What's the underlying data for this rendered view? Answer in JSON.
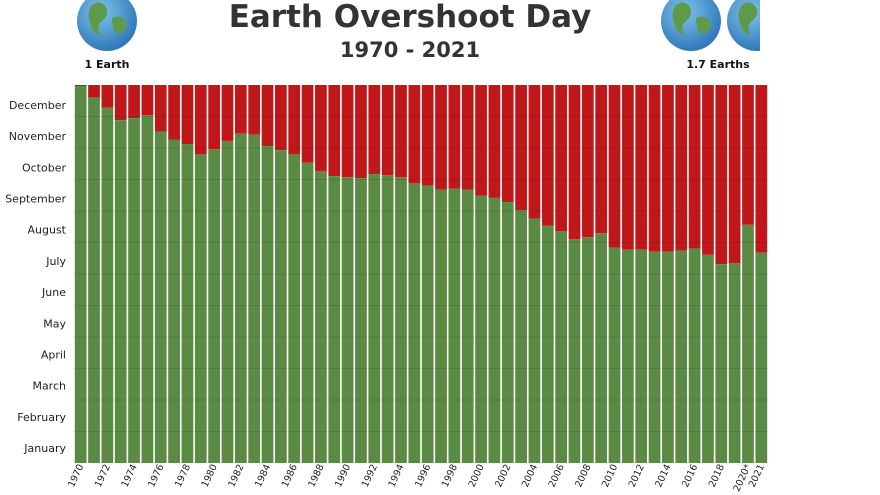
{
  "chart_data": {
    "type": "bar",
    "title": "Earth Overshoot Day",
    "subtitle": "1970 - 2021",
    "left_caption": "1 Earth",
    "right_caption": "1.7 Earths",
    "y_ticks": [
      "December",
      "November",
      "October",
      "September",
      "August",
      "July",
      "June",
      "May",
      "April",
      "March",
      "February",
      "January"
    ],
    "x_tick_labels": [
      "1970",
      "1972",
      "1974",
      "1976",
      "1978",
      "1980",
      "1982",
      "1984",
      "1986",
      "1988",
      "1990",
      "1992",
      "1994",
      "1996",
      "1998",
      "2000",
      "2002",
      "2004",
      "2006",
      "2008",
      "2010",
      "2012",
      "2014",
      "2016",
      "2018",
      "2020*",
      "2021"
    ],
    "ylim": [
      0,
      365
    ],
    "categories": [
      "1970",
      "1971",
      "1972",
      "1973",
      "1974",
      "1975",
      "1976",
      "1977",
      "1978",
      "1979",
      "1980",
      "1981",
      "1982",
      "1983",
      "1984",
      "1985",
      "1986",
      "1987",
      "1988",
      "1989",
      "1990",
      "1991",
      "1992",
      "1993",
      "1994",
      "1995",
      "1996",
      "1997",
      "1998",
      "1999",
      "2000",
      "2001",
      "2002",
      "2003",
      "2004",
      "2005",
      "2006",
      "2007",
      "2008",
      "2009",
      "2010",
      "2011",
      "2012",
      "2013",
      "2014",
      "2015",
      "2016",
      "2017",
      "2018",
      "2019",
      "2020*",
      "2021"
    ],
    "values": [
      364,
      353,
      343,
      331,
      333,
      336,
      320,
      312,
      308,
      298,
      303,
      311,
      318,
      317,
      306,
      302,
      298,
      290,
      282,
      277,
      276,
      275,
      279,
      278,
      276,
      270,
      268,
      264,
      265,
      264,
      258,
      256,
      252,
      244,
      236,
      229,
      224,
      216,
      218,
      222,
      208,
      206,
      206,
      204,
      204,
      205,
      207,
      201,
      192,
      193,
      230,
      203
    ],
    "series_colors": {
      "overshoot_day": "#5a8a43",
      "remaining_year": "#c0171b"
    }
  }
}
